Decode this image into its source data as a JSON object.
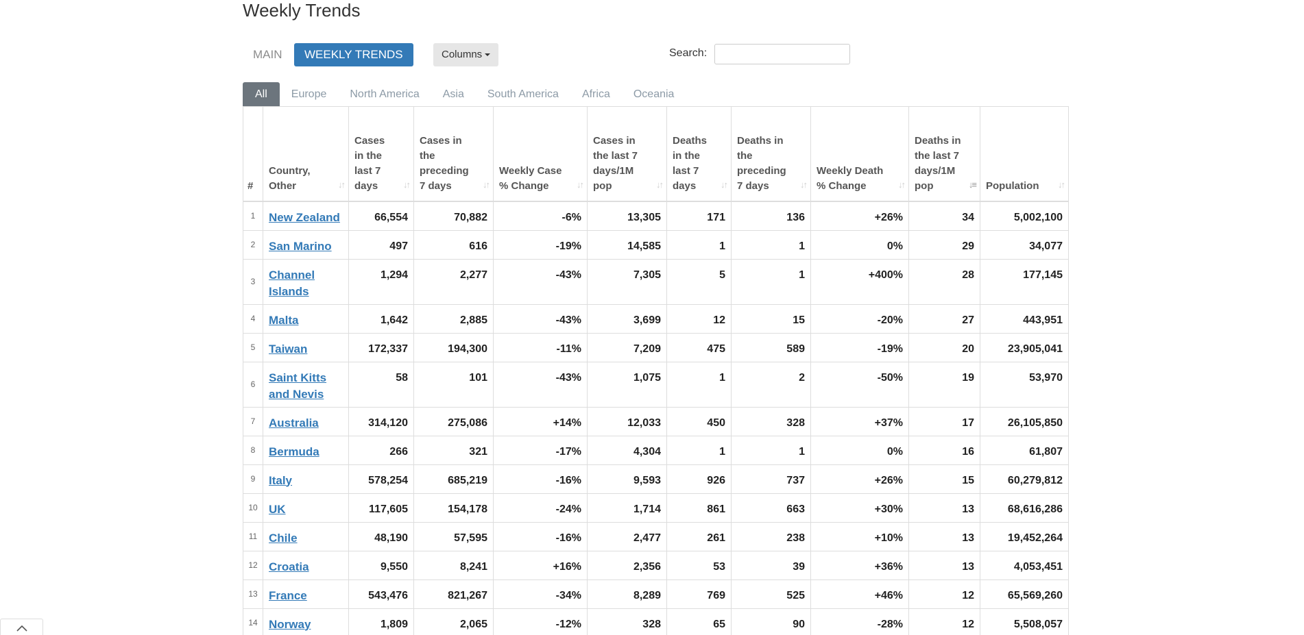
{
  "page": {
    "title": "Weekly Trends"
  },
  "nav": {
    "main_label": "MAIN",
    "weekly_label": "WEEKLY TRENDS",
    "columns_label": "Columns"
  },
  "search": {
    "label": "Search:",
    "value": "",
    "placeholder": ""
  },
  "regions": {
    "tabs": [
      "All",
      "Europe",
      "North America",
      "Asia",
      "South America",
      "Africa",
      "Oceania"
    ],
    "active": "All"
  },
  "table": {
    "headers": [
      "#",
      "Country, Other",
      "Cases in the last 7 days",
      "Cases in the preceding 7 days",
      "Weekly Case % Change",
      "Cases in the last 7 days/1M pop",
      "Deaths in the last 7 days",
      "Deaths in the preceding 7 days",
      "Weekly Death % Change",
      "Deaths in the last 7 days/1M pop",
      "Population"
    ],
    "sorted_column": "Deaths in the last 7 days/1M pop",
    "rows": [
      {
        "idx": "1",
        "country": "New Zealand",
        "cases7": "66,554",
        "casesPrev": "70,882",
        "caseChange": "-6%",
        "casesPerM": "13,305",
        "deaths7": "171",
        "deathsPrev": "136",
        "deathChange": "+26%",
        "deathsPerM": "34",
        "population": "5,002,100"
      },
      {
        "idx": "2",
        "country": "San Marino",
        "cases7": "497",
        "casesPrev": "616",
        "caseChange": "-19%",
        "casesPerM": "14,585",
        "deaths7": "1",
        "deathsPrev": "1",
        "deathChange": "0%",
        "deathsPerM": "29",
        "population": "34,077"
      },
      {
        "idx": "3",
        "country": "Channel Islands",
        "cases7": "1,294",
        "casesPrev": "2,277",
        "caseChange": "-43%",
        "casesPerM": "7,305",
        "deaths7": "5",
        "deathsPrev": "1",
        "deathChange": "+400%",
        "deathsPerM": "28",
        "population": "177,145"
      },
      {
        "idx": "4",
        "country": "Malta",
        "cases7": "1,642",
        "casesPrev": "2,885",
        "caseChange": "-43%",
        "casesPerM": "3,699",
        "deaths7": "12",
        "deathsPrev": "15",
        "deathChange": "-20%",
        "deathsPerM": "27",
        "population": "443,951"
      },
      {
        "idx": "5",
        "country": "Taiwan",
        "cases7": "172,337",
        "casesPrev": "194,300",
        "caseChange": "-11%",
        "casesPerM": "7,209",
        "deaths7": "475",
        "deathsPrev": "589",
        "deathChange": "-19%",
        "deathsPerM": "20",
        "population": "23,905,041"
      },
      {
        "idx": "6",
        "country": "Saint Kitts and Nevis",
        "cases7": "58",
        "casesPrev": "101",
        "caseChange": "-43%",
        "casesPerM": "1,075",
        "deaths7": "1",
        "deathsPrev": "2",
        "deathChange": "-50%",
        "deathsPerM": "19",
        "population": "53,970"
      },
      {
        "idx": "7",
        "country": "Australia",
        "cases7": "314,120",
        "casesPrev": "275,086",
        "caseChange": "+14%",
        "casesPerM": "12,033",
        "deaths7": "450",
        "deathsPrev": "328",
        "deathChange": "+37%",
        "deathsPerM": "17",
        "population": "26,105,850"
      },
      {
        "idx": "8",
        "country": "Bermuda",
        "cases7": "266",
        "casesPrev": "321",
        "caseChange": "-17%",
        "casesPerM": "4,304",
        "deaths7": "1",
        "deathsPrev": "1",
        "deathChange": "0%",
        "deathsPerM": "16",
        "population": "61,807"
      },
      {
        "idx": "9",
        "country": "Italy",
        "cases7": "578,254",
        "casesPrev": "685,219",
        "caseChange": "-16%",
        "casesPerM": "9,593",
        "deaths7": "926",
        "deathsPrev": "737",
        "deathChange": "+26%",
        "deathsPerM": "15",
        "population": "60,279,812"
      },
      {
        "idx": "10",
        "country": "UK",
        "cases7": "117,605",
        "casesPrev": "154,178",
        "caseChange": "-24%",
        "casesPerM": "1,714",
        "deaths7": "861",
        "deathsPrev": "663",
        "deathChange": "+30%",
        "deathsPerM": "13",
        "population": "68,616,286"
      },
      {
        "idx": "11",
        "country": "Chile",
        "cases7": "48,190",
        "casesPrev": "57,595",
        "caseChange": "-16%",
        "casesPerM": "2,477",
        "deaths7": "261",
        "deathsPrev": "238",
        "deathChange": "+10%",
        "deathsPerM": "13",
        "population": "19,452,264"
      },
      {
        "idx": "12",
        "country": "Croatia",
        "cases7": "9,550",
        "casesPrev": "8,241",
        "caseChange": "+16%",
        "casesPerM": "2,356",
        "deaths7": "53",
        "deathsPrev": "39",
        "deathChange": "+36%",
        "deathsPerM": "13",
        "population": "4,053,451"
      },
      {
        "idx": "13",
        "country": "France",
        "cases7": "543,476",
        "casesPrev": "821,267",
        "caseChange": "-34%",
        "casesPerM": "8,289",
        "deaths7": "769",
        "deathsPrev": "525",
        "deathChange": "+46%",
        "deathsPerM": "12",
        "population": "65,569,260"
      },
      {
        "idx": "14",
        "country": "Norway",
        "cases7": "1,809",
        "casesPrev": "2,065",
        "caseChange": "-12%",
        "casesPerM": "328",
        "deaths7": "65",
        "deathsPrev": "90",
        "deathChange": "-28%",
        "deathsPerM": "12",
        "population": "5,508,057"
      }
    ]
  },
  "icons": {
    "sort": "sort-icon",
    "caret": "caret-down-icon",
    "collapse": "chevron-up-icon"
  },
  "colors": {
    "accent": "#337ab7",
    "active_tab": "#6c757d",
    "link": "#337ab7"
  }
}
